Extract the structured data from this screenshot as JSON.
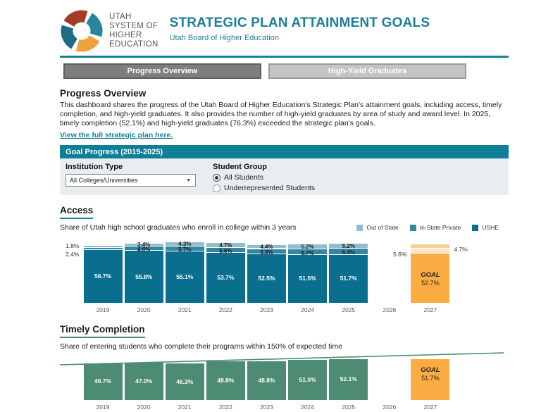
{
  "header": {
    "logo_lines": [
      "UTAH",
      "SYSTEM OF",
      "HIGHER",
      "EDUCATION"
    ],
    "title": "STRATEGIC PLAN ATTAINMENT GOALS",
    "subtitle": "Utah Board of Higher Education"
  },
  "tabs": [
    {
      "label": "Progress Overview",
      "active": true
    },
    {
      "label": "High-Yield Graduates",
      "active": false
    }
  ],
  "overview": {
    "heading": "Progress Overview",
    "body": "This dashboard shares the progress of the Utah Board of Higher Education's Strategic Plan's attainment goals, including access, timely completion, and high-yield graduates. It also provides the number of high-yield graduates by area of study and award level. In 2025, timely completion (52.1%) and high-yield graduates (76.3%) exceeded the strategic plan's goals.",
    "link": "View the full strategic plan here."
  },
  "goal_progress": {
    "title": "Goal Progress (2019-2025)",
    "institution_type_label": "Institution Type",
    "institution_type_value": "All Colleges/Universities",
    "student_group_label": "Student Group",
    "options": [
      {
        "label": "All Students",
        "selected": true
      },
      {
        "label": "Underrepresented Students",
        "selected": false
      }
    ]
  },
  "colors": {
    "brand_teal": "#1A7F99",
    "rule_teal": "#15829B",
    "out_of_state": "#8FBECC",
    "in_state_private": "#3487A3",
    "ushe": "#0A6F8E",
    "timely_green": "#4D8B72",
    "goal_main": "#FAAB42",
    "goal_out": "#F5CF97",
    "goal_private": "#FAE7CB"
  },
  "chart_data": [
    {
      "type": "bar",
      "id": "access",
      "title": "Access",
      "subtitle": "Share of Utah high school graduates who enroll in college within 3 years",
      "stacked": true,
      "legend": [
        {
          "label": "Out of State",
          "color": "#8FBECC"
        },
        {
          "label": "In-State Private",
          "color": "#3487A3"
        },
        {
          "label": "USHE",
          "color": "#0A6F8E"
        }
      ],
      "categories": [
        "2019",
        "2020",
        "2021",
        "2022",
        "2023",
        "2024",
        "2025",
        "2026",
        "2027"
      ],
      "series": [
        {
          "name": "Out of State",
          "values": [
            1.8,
            3.4,
            4.3,
            4.7,
            4.4,
            5.2,
            5.2,
            null,
            4.7
          ]
        },
        {
          "name": "In-State Private",
          "values": [
            2.4,
            4.6,
            5.7,
            5.6,
            5.3,
            5.7,
            6.4,
            null,
            5.6
          ]
        },
        {
          "name": "USHE",
          "values": [
            56.7,
            55.8,
            55.1,
            53.7,
            52.5,
            51.5,
            51.7,
            null,
            52.7
          ]
        }
      ],
      "goal_category": "2027",
      "goal_label": "GOAL",
      "goal_value": "52.7%",
      "ylim": [
        0,
        68
      ],
      "grid": false,
      "legend_position": "top-right"
    },
    {
      "type": "bar",
      "id": "timely",
      "title": "Timely Completion",
      "subtitle": "Share of entering students who complete their programs within 150% of expected time",
      "categories": [
        "2019",
        "2020",
        "2021",
        "2022",
        "2023",
        "2024",
        "2025",
        "2026",
        "2027"
      ],
      "values": [
        46.7,
        47.0,
        46.3,
        48.8,
        48.8,
        51.0,
        52.1,
        null,
        51.7
      ],
      "goal_category": "2027",
      "goal_label": "GOAL",
      "goal_value": "51.7%",
      "trend_line": true,
      "ylim": [
        0,
        59
      ],
      "grid": false
    }
  ]
}
